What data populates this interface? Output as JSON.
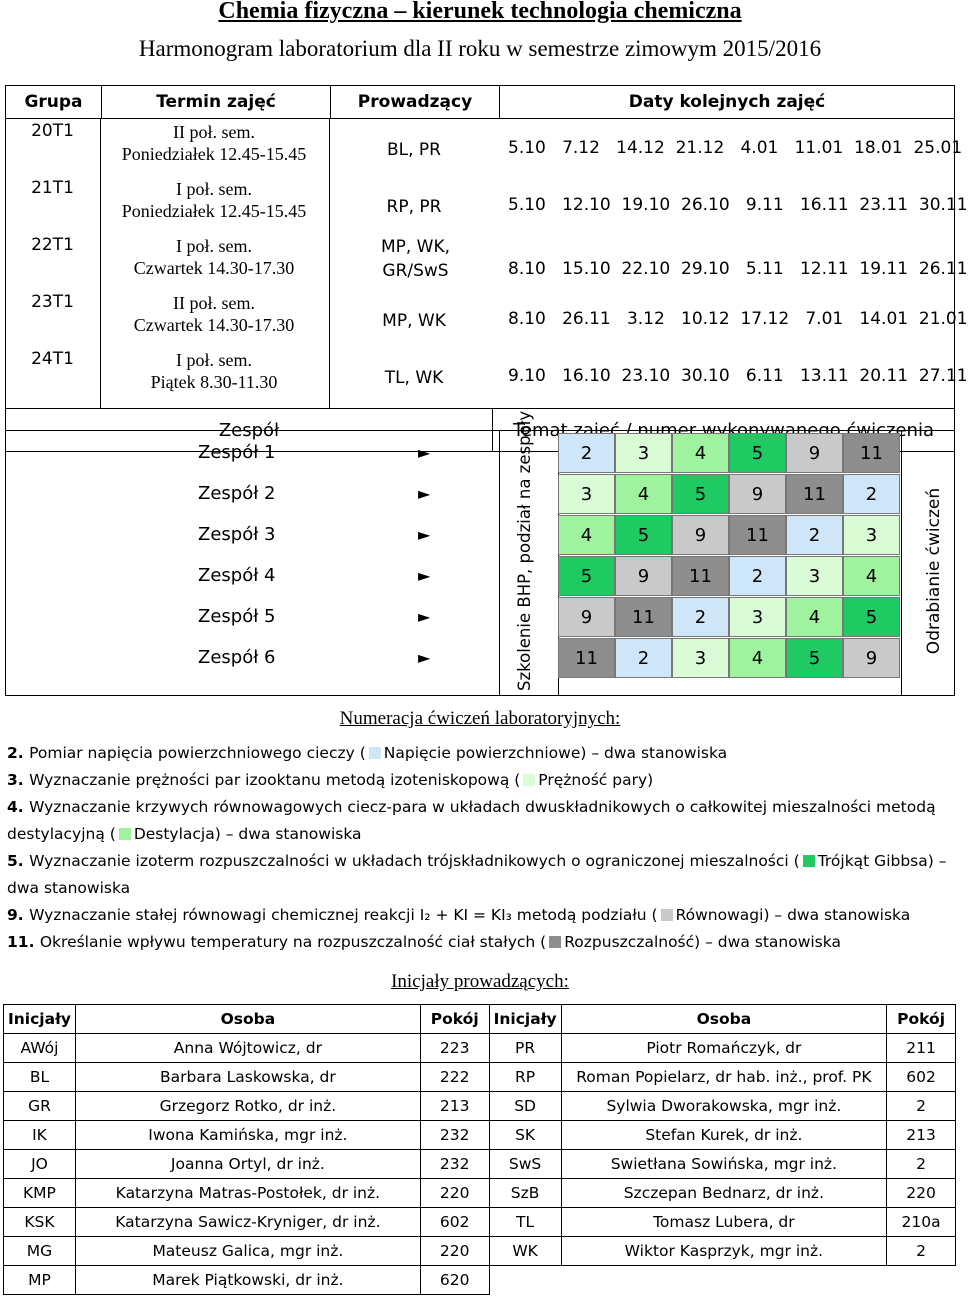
{
  "title": "Chemia fizyczna – kierunek technologia chemiczna",
  "subtitle": "Harmonogram laboratorium dla II roku w semestrze zimowym 2015/2016",
  "schedule": {
    "headers": [
      "Grupa",
      "Termin zajęć",
      "Prowadzący",
      "Daty kolejnych zajęć"
    ],
    "rows": [
      {
        "group": "20T1",
        "sem": "II poł. sem.",
        "day": "Poniedziałek 12.45-15.45",
        "lead": "BL, PR",
        "dates": "5.10   7.12   14.12  21.12   4.01   11.01  18.01  25.01"
      },
      {
        "group": "21T1",
        "sem": "I poł. sem.",
        "day": "Poniedziałek 12.45-15.45",
        "lead": "RP, PR",
        "dates": "5.10   12.10  19.10  26.10   9.11   16.11  23.11  30.11"
      },
      {
        "group": "22T1",
        "sem": "I poł. sem.",
        "day": "Czwartek 14.30-17.30",
        "lead": "MP, WK, GR/SwS",
        "dates": "8.10   15.10  22.10  29.10   5.11   12.11  19.11  26.11"
      },
      {
        "group": "23T1",
        "sem": "II poł. sem.",
        "day": "Czwartek 14.30-17.30",
        "lead": "MP, WK",
        "dates": "8.10   26.11   3.12   10.12  17.12   7.01   14.01  21.01"
      },
      {
        "group": "24T1",
        "sem": "I poł. sem.",
        "day": "Piątek 8.30-11.30",
        "lead": "TL, WK",
        "dates": "9.10   16.10  23.10  30.10   6.11   13.11  20.11  27.11"
      }
    ],
    "team_header": "Zespół",
    "topic_header": "Temat zajęć / numer wykonywanego ćwiczenia"
  },
  "teams": {
    "labels": [
      "Zespół 1",
      "Zespół 2",
      "Zespół 3",
      "Zespół 4",
      "Zespół 5",
      "Zespół 6"
    ],
    "arrow": "►",
    "bhp": "Szkolenie BHP, podział na zespoły",
    "makeup": "Odrabianie ćwiczeń",
    "grid": [
      [
        "2",
        "3",
        "4",
        "5",
        "9",
        "11"
      ],
      [
        "3",
        "4",
        "5",
        "9",
        "11",
        "2"
      ],
      [
        "4",
        "5",
        "9",
        "11",
        "2",
        "3"
      ],
      [
        "5",
        "9",
        "11",
        "2",
        "3",
        "4"
      ],
      [
        "9",
        "11",
        "2",
        "3",
        "4",
        "5"
      ],
      [
        "11",
        "2",
        "3",
        "4",
        "5",
        "9"
      ]
    ],
    "colors": {
      "2": "#cfe6f8",
      "3": "#d9fbd6",
      "4": "#9ff39f",
      "5": "#1fca62",
      "9": "#c9c9c9",
      "11": "#8e8e8e"
    }
  },
  "numbering": {
    "heading": "Numeracja ćwiczeń laboratoryjnych:",
    "items": [
      {
        "n": "2.",
        "pre": "Pomiar napięcia powierzchniowego cieczy (",
        "key": "2",
        "post": "Napięcie powierzchniowe) – dwa stanowiska"
      },
      {
        "n": "3.",
        "pre": "Wyznaczanie prężności par izooktanu metodą izoteniskopową (",
        "key": "3",
        "post": "Prężność pary)"
      },
      {
        "n": "4.",
        "pre": "Wyznaczanie krzywych równowagowych ciecz-para w układach dwuskładnikowych o całkowitej mieszalności metodą destylacyjną (",
        "key": "4",
        "post": "Destylacja) – dwa stanowiska"
      },
      {
        "n": "5.",
        "pre": "Wyznaczanie izoterm rozpuszczalności w układach trójskładnikowych o ograniczonej mieszalności (",
        "key": "5",
        "post": "Trójkąt Gibbsa) – dwa stanowiska"
      },
      {
        "n": "9.",
        "pre": "Wyznaczanie stałej równowagi chemicznej reakcji I₂ + KI = KI₃ metodą podziału (",
        "key": "9",
        "post": "Równowagi) – dwa stanowiska"
      },
      {
        "n": "11.",
        "pre": "Określanie wpływu temperatury na rozpuszczalność ciał stałych (",
        "key": "11",
        "post": "Rozpuszczalność) – dwa stanowiska"
      }
    ]
  },
  "initials": {
    "heading": "Inicjały prowadzących:",
    "headers": [
      "Inicjały",
      "Osoba",
      "Pokój",
      "Inicjały",
      "Osoba",
      "Pokój"
    ],
    "rows": [
      [
        "AWój",
        "Anna Wójtowicz, dr",
        "223",
        "PR",
        "Piotr Romańczyk, dr",
        "211"
      ],
      [
        "BL",
        "Barbara Laskowska, dr",
        "222",
        "RP",
        "Roman Popielarz, dr hab. inż., prof. PK",
        "602"
      ],
      [
        "GR",
        "Grzegorz Rotko, dr inż.",
        "213",
        "SD",
        "Sylwia Dworakowska, mgr inż.",
        "2"
      ],
      [
        "IK",
        "Iwona Kamińska, mgr inż.",
        "232",
        "SK",
        "Stefan Kurek, dr inż.",
        "213"
      ],
      [
        "JO",
        "Joanna Ortyl, dr inż.",
        "232",
        "SwS",
        "Swietłana Sowińska, mgr inż.",
        "2"
      ],
      [
        "KMP",
        "Katarzyna Matras-Postołek, dr inż.",
        "220",
        "SzB",
        "Szczepan Bednarz, dr inż.",
        "220"
      ],
      [
        "KSK",
        "Katarzyna Sawicz-Kryniger, dr inż.",
        "602",
        "TL",
        "Tomasz Lubera, dr",
        "210a"
      ],
      [
        "MG",
        "Mateusz Galica, mgr inż.",
        "220",
        "WK",
        "Wiktor Kasprzyk, mgr inż.",
        "2"
      ],
      [
        "MP",
        "Marek Piątkowski, dr inż.",
        "620",
        "",
        "",
        ""
      ]
    ]
  }
}
